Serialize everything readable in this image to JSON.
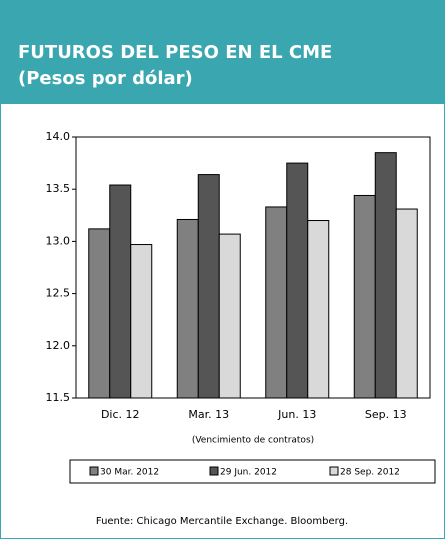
{
  "chart_data": {
    "type": "bar",
    "title": "FUTUROS DEL PESO EN EL CME",
    "subtitle": "(Pesos por dólar)",
    "x_label": "(Vencimiento de contratos)",
    "source": "Fuente: Chicago Mercantile Exchange. Bloomberg.",
    "categories": [
      "Dic. 12",
      "Mar. 13",
      "Jun. 13",
      "Sep. 13"
    ],
    "series": [
      {
        "name": "30 Mar. 2012",
        "color": "#808080",
        "values": [
          13.12,
          13.21,
          13.33,
          13.44
        ]
      },
      {
        "name": "29 Jun. 2012",
        "color": "#555555",
        "values": [
          13.54,
          13.64,
          13.75,
          13.85
        ]
      },
      {
        "name": "28 Sep. 2012",
        "color": "#d9d9d9",
        "values": [
          12.97,
          13.07,
          13.2,
          13.31
        ]
      }
    ],
    "ylim": [
      11.5,
      14.0
    ],
    "yticks": [
      {
        "value": 11.5,
        "label": "11.5"
      },
      {
        "value": 12,
        "label": "12.0"
      },
      {
        "value": 12.5,
        "label": "12.5"
      },
      {
        "value": 13,
        "label": "13.0"
      },
      {
        "value": 13.5,
        "label": "13.5"
      },
      {
        "value": 14,
        "label": "14.0"
      }
    ],
    "legend": "bottom"
  }
}
